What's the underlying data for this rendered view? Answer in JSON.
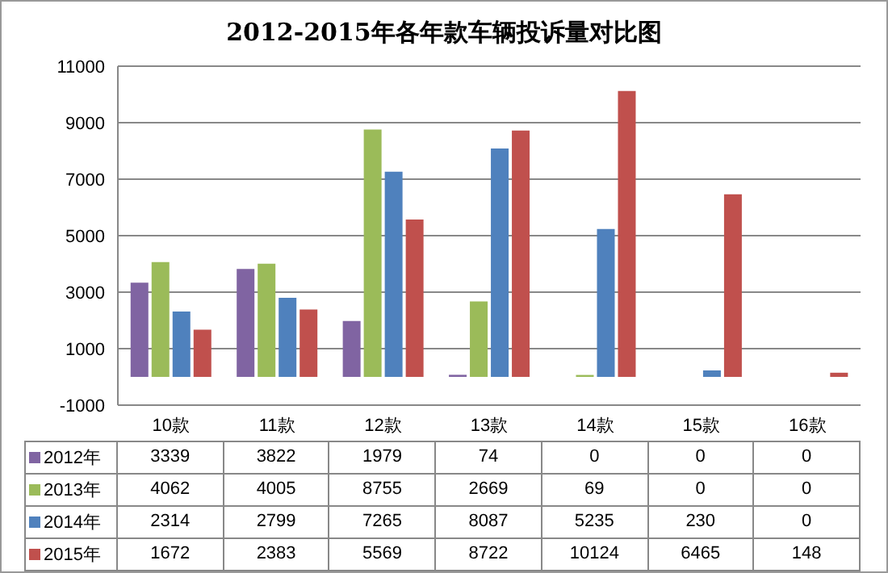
{
  "chart_data": {
    "type": "bar",
    "title": "2012-2015年各年款车辆投诉量对比图",
    "categories": [
      "10款",
      "11款",
      "12款",
      "13款",
      "14款",
      "15款",
      "16款"
    ],
    "series": [
      {
        "name": "2012年",
        "color": "#8064a2",
        "values": [
          3339,
          3822,
          1979,
          74,
          0,
          0,
          0
        ]
      },
      {
        "name": "2013年",
        "color": "#9bbb59",
        "values": [
          4062,
          4005,
          8755,
          2669,
          69,
          0,
          0
        ]
      },
      {
        "name": "2014年",
        "color": "#4f81bd",
        "values": [
          2314,
          2799,
          7265,
          8087,
          5235,
          230,
          0
        ]
      },
      {
        "name": "2015年",
        "color": "#c0504d",
        "values": [
          1672,
          2383,
          5569,
          8722,
          10124,
          6465,
          148
        ]
      }
    ],
    "ylim": [
      -1000,
      11000
    ],
    "yticks": [
      -1000,
      1000,
      3000,
      5000,
      7000,
      9000,
      11000
    ],
    "grid": "y",
    "legend": "bottom left",
    "data_labels": true
  }
}
